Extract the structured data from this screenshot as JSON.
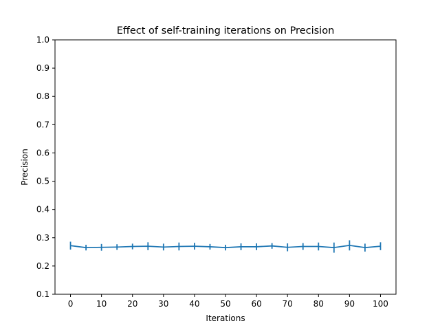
{
  "chart_data": {
    "type": "line",
    "title": "Effect of self-training iterations on Precision",
    "xlabel": "Iterations",
    "ylabel": "Precision",
    "xlim": [
      -5,
      105
    ],
    "ylim": [
      0.1,
      1.0
    ],
    "xticks": [
      "0",
      "10",
      "20",
      "30",
      "40",
      "50",
      "60",
      "70",
      "80",
      "90",
      "100"
    ],
    "yticks": [
      "0.1",
      "0.2",
      "0.3",
      "0.4",
      "0.5",
      "0.6",
      "0.7",
      "0.8",
      "0.9",
      "1.0"
    ],
    "grid": false,
    "legend": "none",
    "series": [
      {
        "color": "#1f77b4",
        "x": [
          0,
          5,
          10,
          15,
          20,
          25,
          30,
          35,
          40,
          45,
          50,
          55,
          60,
          65,
          70,
          75,
          80,
          85,
          90,
          95,
          100
        ],
        "values": [
          0.272,
          0.265,
          0.266,
          0.267,
          0.269,
          0.27,
          0.267,
          0.269,
          0.27,
          0.268,
          0.265,
          0.268,
          0.268,
          0.271,
          0.266,
          0.269,
          0.269,
          0.265,
          0.273,
          0.265,
          0.27
        ],
        "error": [
          0.014,
          0.01,
          0.012,
          0.01,
          0.01,
          0.014,
          0.012,
          0.014,
          0.012,
          0.01,
          0.01,
          0.012,
          0.012,
          0.01,
          0.014,
          0.012,
          0.014,
          0.018,
          0.018,
          0.014,
          0.014
        ]
      }
    ]
  }
}
